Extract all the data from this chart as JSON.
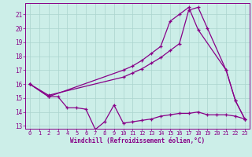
{
  "bg_color": "#cceee8",
  "grid_color": "#aad4ce",
  "line_color": "#880088",
  "xlabel": "Windchill (Refroidissement éolien,°C)",
  "xlim": [
    -0.5,
    23.5
  ],
  "ylim": [
    12.8,
    21.8
  ],
  "yticks": [
    13,
    14,
    15,
    16,
    17,
    18,
    19,
    20,
    21
  ],
  "xticks": [
    0,
    1,
    2,
    3,
    4,
    5,
    6,
    7,
    8,
    9,
    10,
    11,
    12,
    13,
    14,
    15,
    16,
    17,
    18,
    19,
    20,
    21,
    22,
    23
  ],
  "curve_top_x": [
    0,
    2,
    10,
    11,
    12,
    13,
    14,
    15,
    16,
    17,
    18,
    21,
    22,
    23
  ],
  "curve_top_y": [
    16.0,
    15.1,
    17.0,
    17.3,
    17.7,
    18.2,
    18.7,
    20.5,
    21.0,
    21.5,
    19.9,
    17.0,
    14.8,
    13.5
  ],
  "curve_mid_x": [
    0,
    2,
    10,
    11,
    12,
    13,
    14,
    15,
    16,
    17,
    18,
    19,
    21,
    22,
    23
  ],
  "curve_mid_y": [
    16.0,
    15.2,
    16.5,
    16.8,
    17.1,
    17.5,
    17.9,
    18.4,
    18.9,
    21.3,
    21.5,
    20.0,
    17.0,
    14.8,
    13.5
  ],
  "curve_bot_x": [
    0,
    2,
    3,
    4,
    5,
    6,
    7,
    8,
    9,
    10,
    11,
    12,
    13,
    14,
    15,
    16,
    17,
    18,
    19,
    20,
    21,
    22,
    23
  ],
  "curve_bot_y": [
    16.0,
    15.1,
    15.1,
    14.3,
    14.3,
    14.2,
    12.75,
    13.3,
    14.5,
    13.2,
    13.3,
    13.4,
    13.5,
    13.7,
    13.8,
    13.9,
    13.9,
    14.0,
    13.8,
    13.8,
    13.8,
    13.7,
    13.5
  ]
}
